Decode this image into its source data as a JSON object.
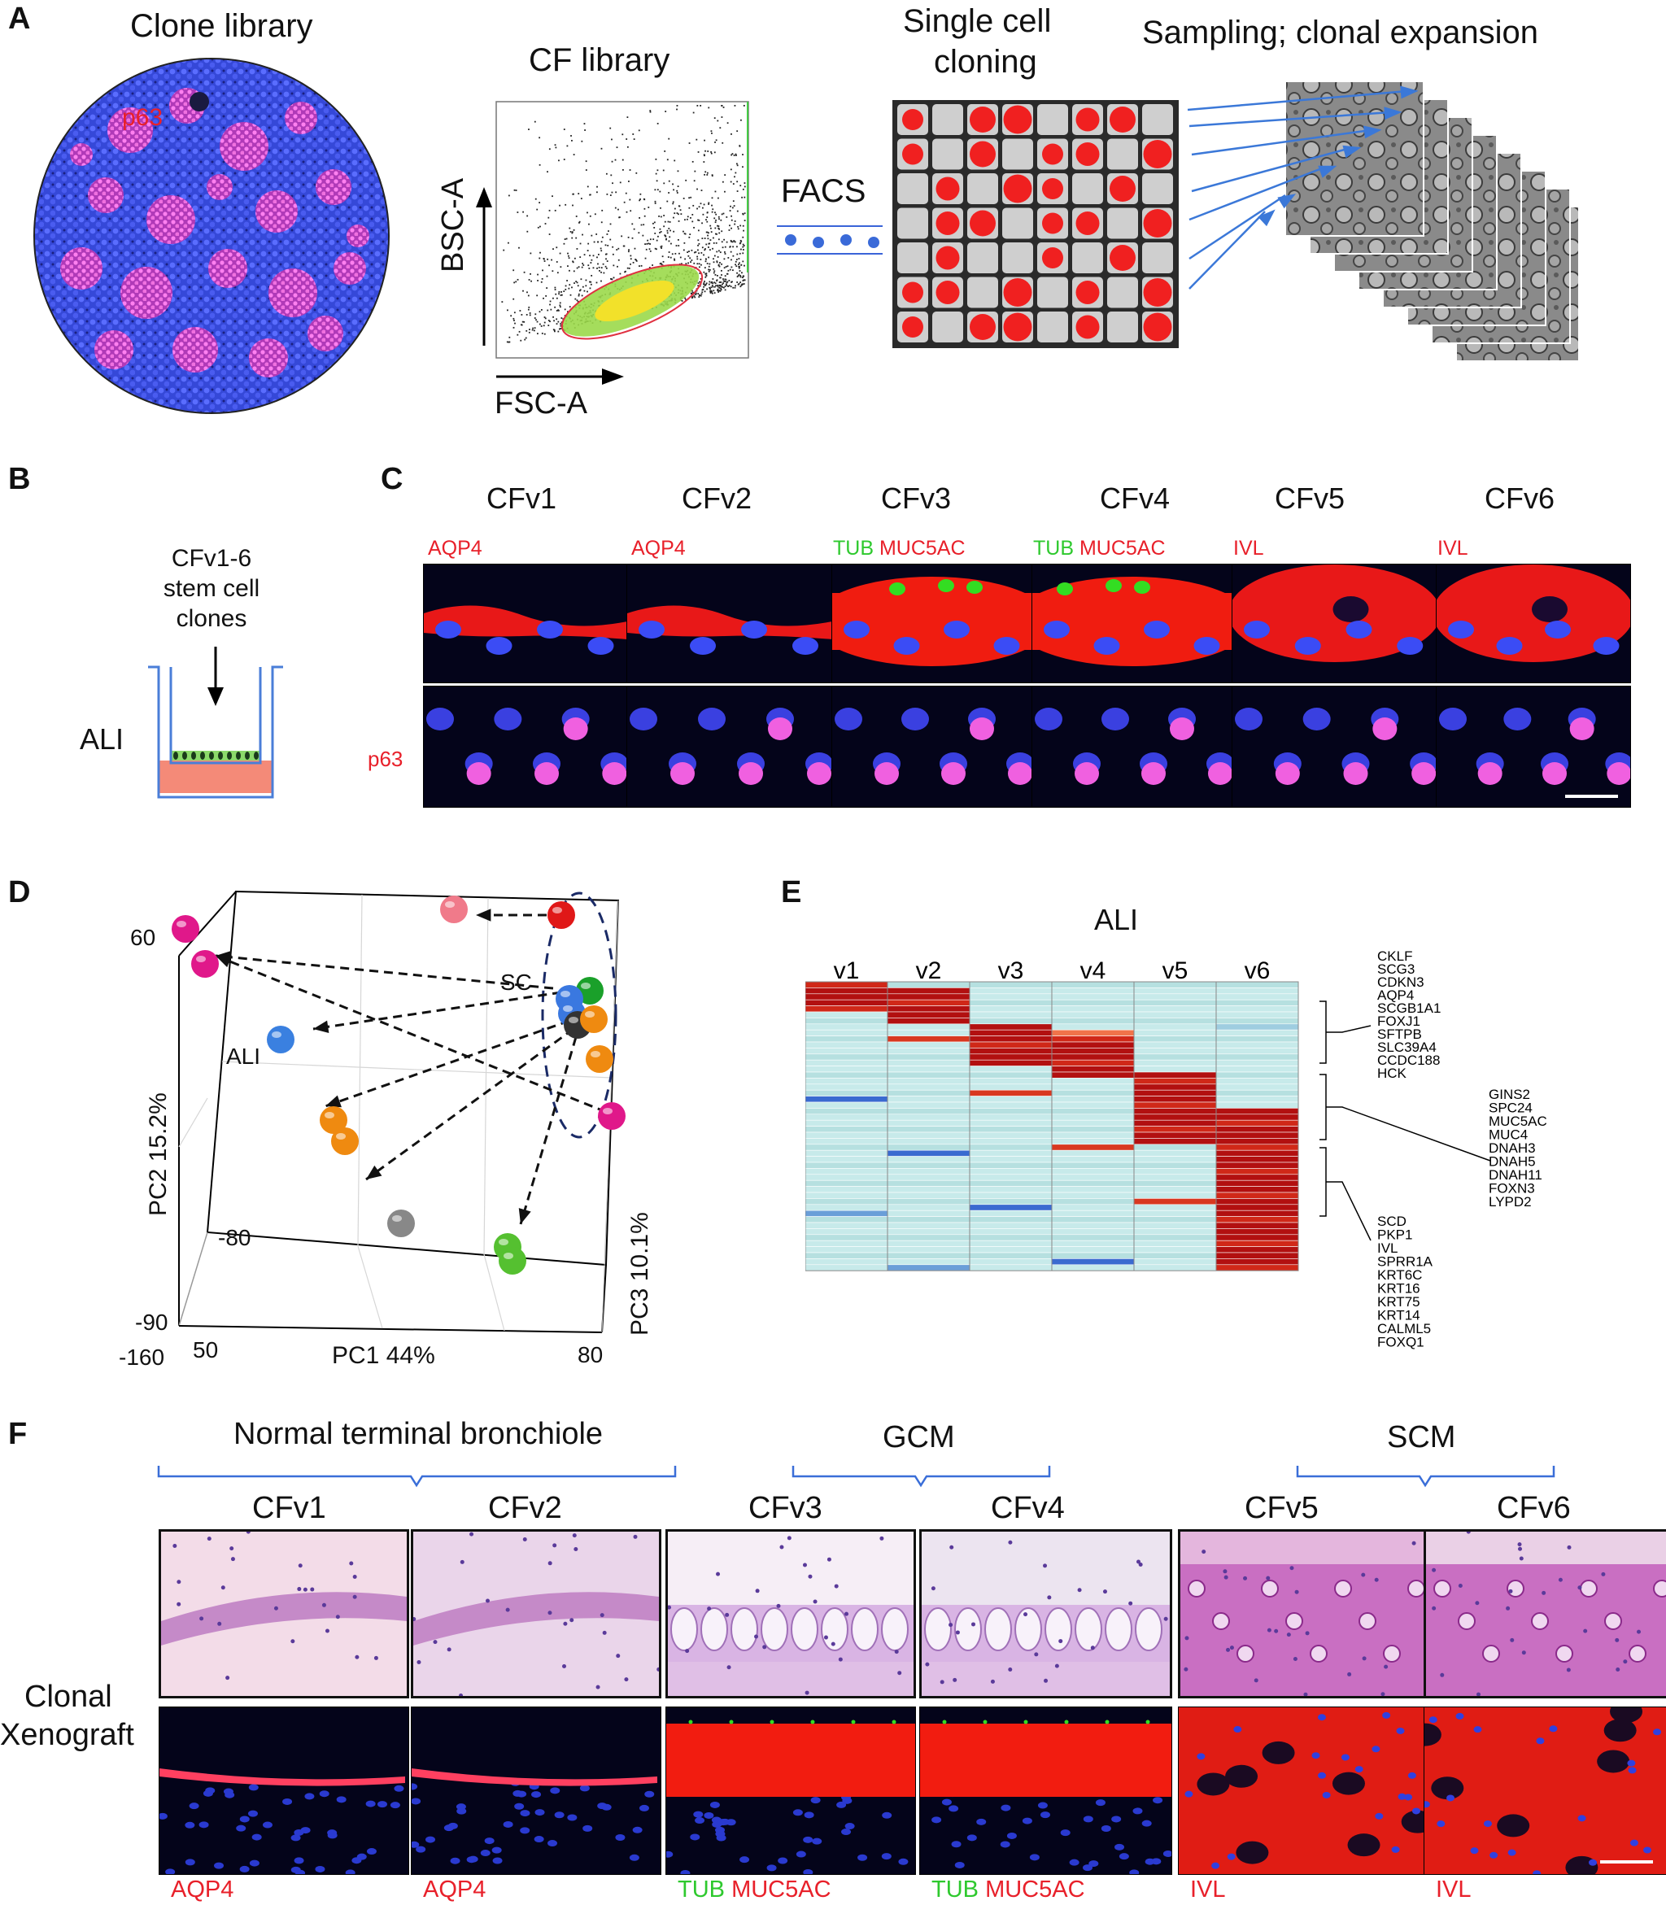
{
  "panels": {
    "a": "A",
    "b": "B",
    "c": "C",
    "d": "D",
    "e": "E",
    "f": "F"
  },
  "a": {
    "clone_library": "Clone library",
    "p63": "p63",
    "cf_library": "CF library",
    "bsc": "BSC-A",
    "fsc": "FSC-A",
    "facs": "FACS",
    "single_cell": "Single cell",
    "cloning": "cloning",
    "sampling": "Sampling; clonal expansion"
  },
  "b": {
    "line1": "CFv1-6",
    "line2": "stem cell",
    "line3": "clones",
    "ali": "ALI"
  },
  "c": {
    "clones": [
      "CFv1",
      "CFv2",
      "CFv3",
      "CFv4",
      "CFv5",
      "CFv6"
    ],
    "markers": [
      {
        "green": "",
        "red": "AQP4"
      },
      {
        "green": "",
        "red": "AQP4"
      },
      {
        "green": "TUB",
        "red": "MUC5AC"
      },
      {
        "green": "TUB",
        "red": "MUC5AC"
      },
      {
        "green": "",
        "red": "IVL"
      },
      {
        "green": "",
        "red": "IVL"
      }
    ],
    "row_label": "p63"
  },
  "d": {
    "sc": "SC",
    "ali": "ALI",
    "pc1": "PC1 44%",
    "pc2": "PC2 15.2%",
    "pc3": "PC3 10.1%",
    "t60": "60",
    "tm80": "-80",
    "tm90": "-90",
    "tm160": "-160",
    "t50": "50",
    "t80": "80"
  },
  "chart_data": {
    "type": "heatmap",
    "title": "ALI",
    "columns": [
      "v1",
      "v2",
      "v3",
      "v4",
      "v5",
      "v6"
    ],
    "rows": 48,
    "gene_groups": [
      {
        "genes": [
          "CKLF",
          "SCG3",
          "CDKN3",
          "AQP4",
          "SCGB1A1",
          "FOXJ1",
          "SFTPB",
          "SLC39A4",
          "CCDC188",
          "HCK"
        ]
      },
      {
        "genes": [
          "GINS2",
          "SPC24",
          "MUC5AC",
          "MUC4",
          "DNAH3",
          "DNAH5",
          "DNAH11",
          "FOXN3",
          "LYPD2"
        ]
      },
      {
        "genes": [
          "SCD",
          "PKP1",
          "IVL",
          "SPRR1A",
          "KRT6C",
          "KRT16",
          "KRT75",
          "KRT14",
          "CALML5",
          "FOXQ1"
        ]
      }
    ],
    "high_blocks": [
      {
        "column": "v1",
        "rows": [
          0,
          4
        ]
      },
      {
        "column": "v2",
        "rows": [
          1,
          6
        ]
      },
      {
        "column": "v3",
        "rows": [
          7,
          13
        ]
      },
      {
        "column": "v4",
        "rows": [
          9,
          15
        ]
      },
      {
        "column": "v5",
        "rows": [
          15,
          26
        ]
      },
      {
        "column": "v6",
        "rows": [
          21,
          47
        ]
      }
    ]
  },
  "f": {
    "normal": "Normal terminal bronchiole",
    "gcm": "GCM",
    "scm": "SCM",
    "clones": [
      "CFv1",
      "CFv2",
      "CFv3",
      "CFv4",
      "CFv5",
      "CFv6"
    ],
    "row_label1": "Clonal",
    "row_label2": "Xenograft",
    "markers": [
      {
        "green": "",
        "red": "AQP4"
      },
      {
        "green": "",
        "red": "AQP4"
      },
      {
        "green": "TUB",
        "red": "MUC5AC"
      },
      {
        "green": "TUB",
        "red": "MUC5AC"
      },
      {
        "green": "",
        "red": "IVL"
      },
      {
        "green": "",
        "red": "IVL"
      }
    ]
  },
  "colors": {
    "nuclei": "#3b4cf5",
    "red": "#ff2010",
    "green": "#33dd22",
    "pink": "#e060d0",
    "heat_low": "#bfe6e6",
    "heat_high": "#b01010"
  }
}
